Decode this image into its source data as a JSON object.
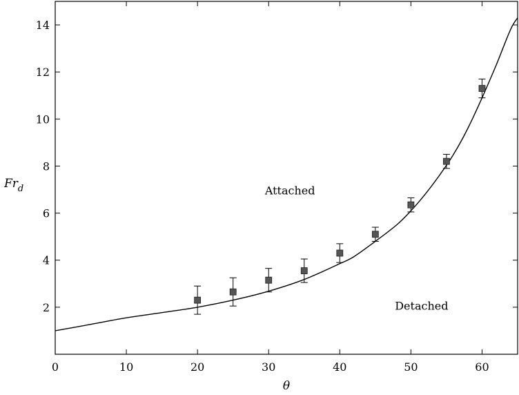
{
  "chart_data": {
    "type": "scatter",
    "title": "",
    "xlabel": "θ",
    "ylabel_main": "Fr",
    "ylabel_sub": "d",
    "xlim": [
      0,
      65
    ],
    "ylim": [
      0,
      15
    ],
    "x_ticks": [
      0,
      10,
      20,
      30,
      40,
      50,
      60
    ],
    "y_ticks": [
      2,
      4,
      6,
      8,
      10,
      12,
      14
    ],
    "grid": false,
    "series": [
      {
        "kind": "points-with-error-bars",
        "marker": "square",
        "color": "#555555",
        "x": [
          20,
          25,
          30,
          35,
          40,
          45,
          50,
          55,
          60
        ],
        "y": [
          2.3,
          2.65,
          3.15,
          3.55,
          4.3,
          5.1,
          6.35,
          8.2,
          11.3
        ],
        "err_low": [
          0.6,
          0.6,
          0.5,
          0.5,
          0.4,
          0.3,
          0.3,
          0.3,
          0.4
        ],
        "err_high": [
          0.6,
          0.6,
          0.5,
          0.5,
          0.4,
          0.3,
          0.3,
          0.3,
          0.4
        ]
      },
      {
        "kind": "curve",
        "color": "#000000",
        "x": [
          0,
          5,
          10,
          15,
          20,
          25,
          30,
          35,
          40,
          42,
          45,
          48,
          50,
          52,
          54,
          56,
          58,
          60,
          62,
          64,
          65
        ],
        "y": [
          1.0,
          1.27,
          1.55,
          1.77,
          2.0,
          2.3,
          2.68,
          3.18,
          3.85,
          4.15,
          4.8,
          5.5,
          6.1,
          6.8,
          7.6,
          8.5,
          9.6,
          10.9,
          12.3,
          13.8,
          14.3
        ]
      }
    ],
    "annotations": [
      {
        "text": "Attached",
        "x": 33,
        "y": 6.8
      },
      {
        "text": "Detached",
        "x": 51.5,
        "y": 1.9
      }
    ]
  }
}
